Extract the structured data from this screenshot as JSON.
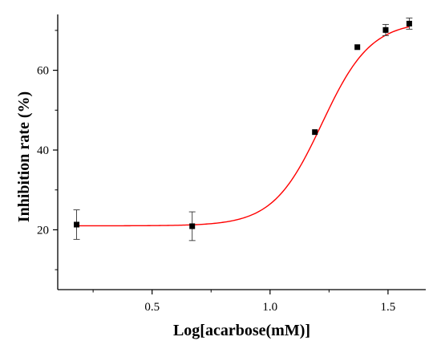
{
  "chart_data": {
    "type": "scatter",
    "title": "",
    "xlabel": "Log[acarbose(mM)]",
    "ylabel": "Inhibition rate (%)",
    "xlim": [
      0.1,
      1.66
    ],
    "ylim": [
      5,
      74
    ],
    "x_ticks": [
      0.5,
      1.0,
      1.5
    ],
    "x_tick_labels": [
      "0.5",
      "1.0",
      "1.5"
    ],
    "y_ticks": [
      20,
      40,
      60
    ],
    "y_tick_labels": [
      "20",
      "40",
      "60"
    ],
    "grid": false,
    "legend": "none",
    "series": [
      {
        "marker": "square",
        "color": "#000000",
        "x": [
          0.18,
          0.67,
          1.19,
          1.37,
          1.49,
          1.59
        ],
        "y": [
          21.3,
          20.9,
          44.5,
          65.8,
          70.1,
          71.7
        ],
        "error": [
          3.7,
          3.6,
          0.0,
          0.0,
          1.4,
          1.4
        ]
      }
    ],
    "fit": {
      "type": "sigmoid",
      "color": "#ff0000",
      "bottom": 21.0,
      "top": 72.3,
      "x0": 1.22,
      "slope": 4.2,
      "x_range": [
        0.18,
        1.59
      ]
    }
  }
}
